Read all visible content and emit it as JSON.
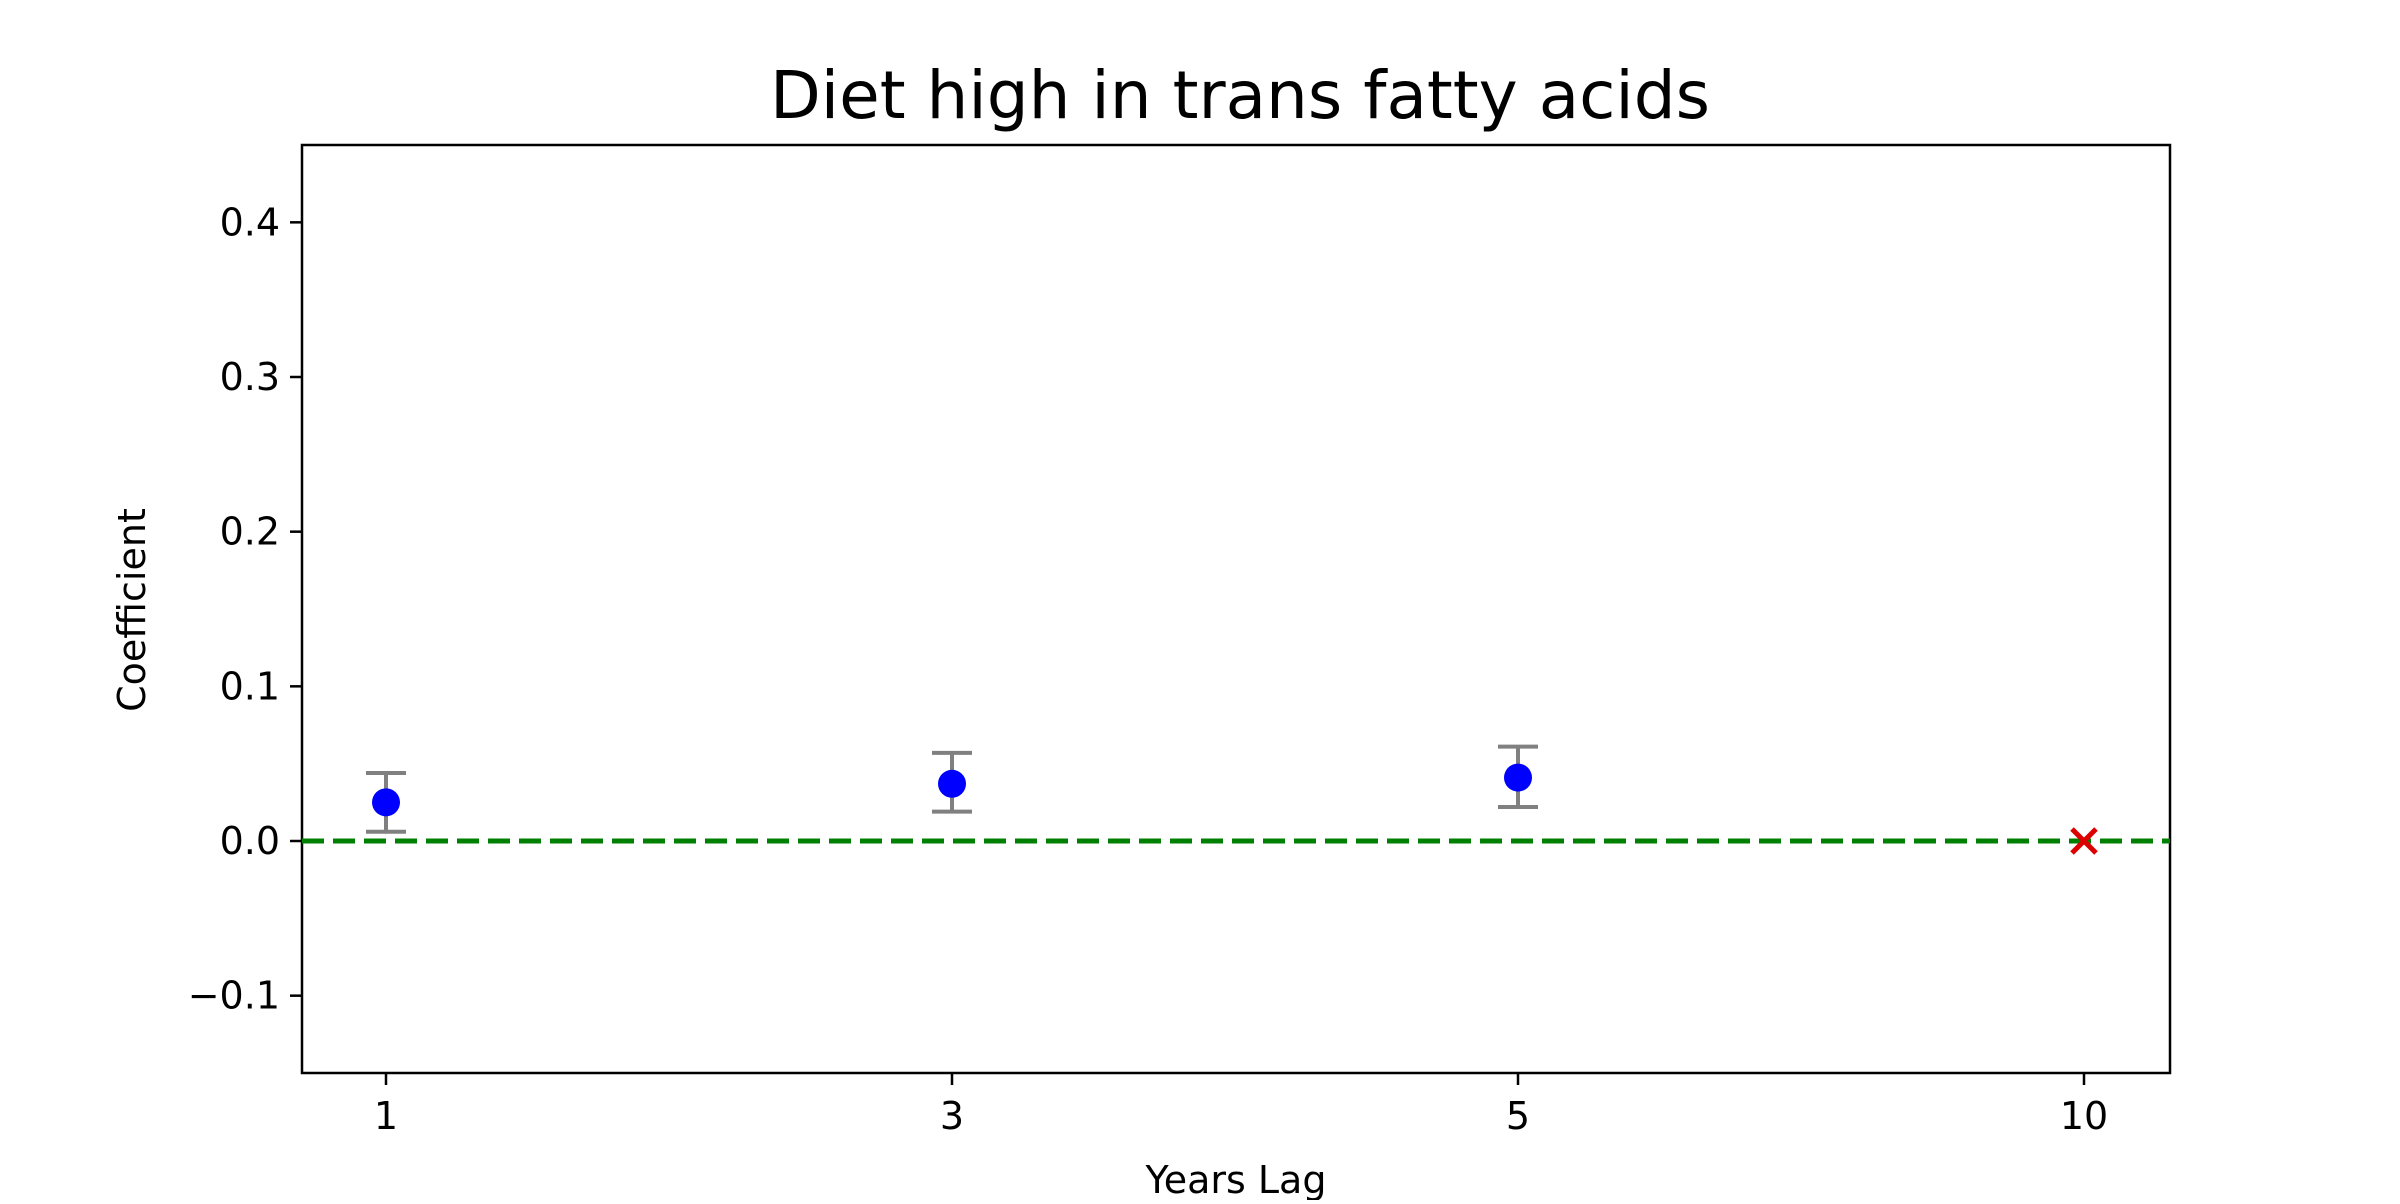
{
  "chart_data": {
    "type": "scatter",
    "title": "Diet high in trans fatty acids",
    "xlabel": "Years Lag",
    "ylabel": "Coefficient",
    "ylim": [
      -0.15,
      0.45
    ],
    "categories": [
      "1",
      "3",
      "5",
      "10"
    ],
    "yticks": [
      -0.1,
      0.0,
      0.1,
      0.2,
      0.3,
      0.4
    ],
    "ytick_labels": [
      "−0.1",
      "0.0",
      "0.1",
      "0.2",
      "0.3",
      "0.4"
    ],
    "grid": false,
    "legend": "none",
    "reference_line": {
      "y": 0.0,
      "style": "dashed",
      "color": "#008000"
    },
    "series": [
      {
        "marker": "circle",
        "color": "#0000ff",
        "error_bar_color": "#808080",
        "points": [
          {
            "x": "1",
            "y": 0.025,
            "lower": 0.006,
            "upper": 0.044
          },
          {
            "x": "3",
            "y": 0.037,
            "lower": 0.019,
            "upper": 0.057
          },
          {
            "x": "5",
            "y": 0.041,
            "lower": 0.022,
            "upper": 0.061
          }
        ]
      },
      {
        "marker": "x",
        "color": "#dd0000",
        "points": [
          {
            "x": "10",
            "y": 0.0
          }
        ]
      }
    ]
  }
}
